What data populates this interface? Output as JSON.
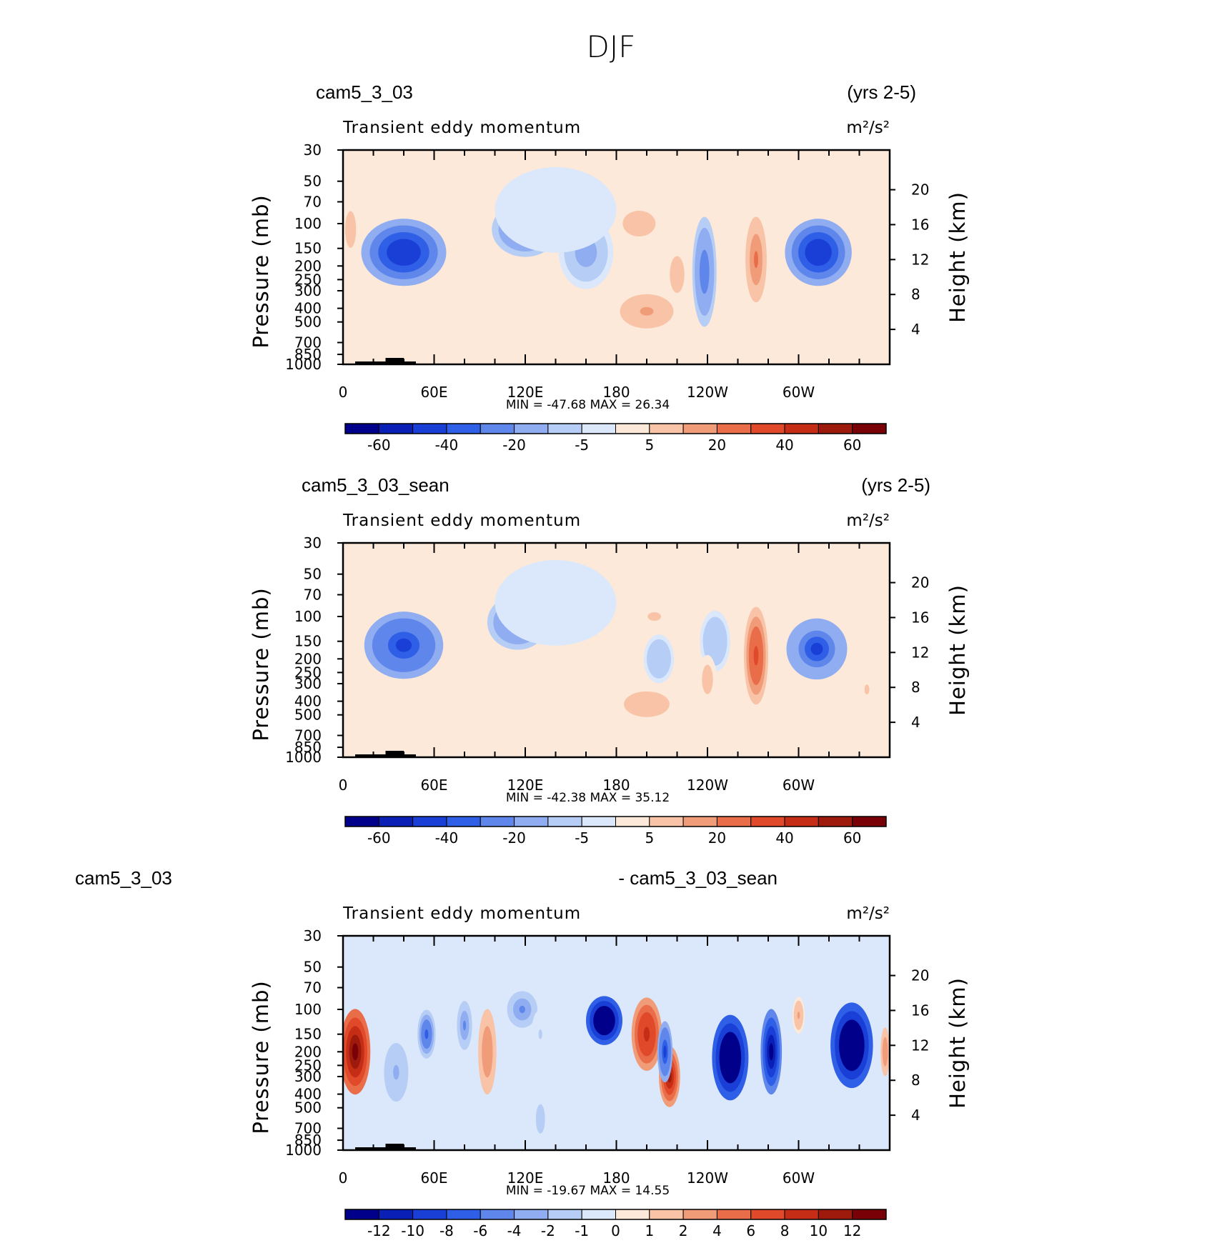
{
  "title": "DJF",
  "panels": [
    {
      "left_title": "cam5_3_03",
      "right_title": "(yrs 2-5)",
      "field_label": "Transient eddy momentum",
      "units": "m²/s²",
      "min_max": "MIN = -47.68   MAX =   26.34",
      "cb_labels": [
        "-60",
        "-40",
        "-20",
        "-5",
        "5",
        "20",
        "40",
        "60"
      ],
      "cb_colors": [
        "#00008b",
        "#0a1fb5",
        "#1a3fd6",
        "#2f5fe6",
        "#5f86ea",
        "#8fadf0",
        "#b6cdf5",
        "#dbe8fb",
        "#fde9d9",
        "#f8c3a6",
        "#f19c79",
        "#ea6d49",
        "#e04a2a",
        "#c52d17",
        "#9d1a0c",
        "#7a0008"
      ],
      "blobs": [
        {
          "lon": 40,
          "p": 160,
          "lw": 28,
          "pw": 0.55,
          "v": -45
        },
        {
          "lon": 120,
          "p": 110,
          "lw": 22,
          "pw": 0.45,
          "v": -30
        },
        {
          "lon": 160,
          "p": 160,
          "lw": 18,
          "pw": 0.6,
          "v": -18
        },
        {
          "lon": 195,
          "p": 100,
          "lw": 18,
          "pw": 0.35,
          "v": 12
        },
        {
          "lon": 200,
          "p": 420,
          "lw": 22,
          "pw": 0.35,
          "v": 15
        },
        {
          "lon": 220,
          "p": 230,
          "lw": 8,
          "pw": 0.5,
          "v": 12
        },
        {
          "lon": 238,
          "p": 220,
          "lw": 8,
          "pw": 0.9,
          "v": -30
        },
        {
          "lon": 272,
          "p": 180,
          "lw": 7,
          "pw": 0.7,
          "v": 26
        },
        {
          "lon": 313,
          "p": 160,
          "lw": 22,
          "pw": 0.55,
          "v": -45
        },
        {
          "lon": 5,
          "p": 110,
          "lw": 6,
          "pw": 0.5,
          "v": 12
        },
        {
          "lon": 100,
          "p": 600,
          "lw": 5,
          "pw": 0.25,
          "v": 6
        },
        {
          "lon": 140,
          "p": 80,
          "lw": 40,
          "pw": 0.7,
          "v": -4
        }
      ]
    },
    {
      "left_title": "cam5_3_03_sean",
      "right_title": "(yrs 2-5)",
      "field_label": "Transient eddy momentum",
      "units": "m²/s²",
      "min_max": "MIN = -42.38   MAX =   35.12",
      "cb_labels": [
        "-60",
        "-40",
        "-20",
        "-5",
        "5",
        "20",
        "40",
        "60"
      ],
      "cb_colors": [
        "#00008b",
        "#0a1fb5",
        "#1a3fd6",
        "#2f5fe6",
        "#5f86ea",
        "#8fadf0",
        "#b6cdf5",
        "#dbe8fb",
        "#fde9d9",
        "#f8c3a6",
        "#f19c79",
        "#ea6d49",
        "#e04a2a",
        "#c52d17",
        "#9d1a0c",
        "#7a0008"
      ],
      "blobs": [
        {
          "lon": 40,
          "p": 160,
          "lw": 26,
          "pw": 0.55,
          "v": -42
        },
        {
          "lon": 115,
          "p": 110,
          "lw": 20,
          "pw": 0.45,
          "v": -30
        },
        {
          "lon": 205,
          "p": 100,
          "lw": 22,
          "pw": 0.35,
          "v": 8
        },
        {
          "lon": 200,
          "p": 420,
          "lw": 25,
          "pw": 0.35,
          "v": 12
        },
        {
          "lon": 208,
          "p": 200,
          "lw": 10,
          "pw": 0.4,
          "v": -14
        },
        {
          "lon": 245,
          "p": 150,
          "lw": 10,
          "pw": 0.5,
          "v": -14
        },
        {
          "lon": 240,
          "p": 280,
          "lw": 6,
          "pw": 0.4,
          "v": 12
        },
        {
          "lon": 272,
          "p": 190,
          "lw": 8,
          "pw": 0.8,
          "v": 35
        },
        {
          "lon": 312,
          "p": 170,
          "lw": 20,
          "pw": 0.5,
          "v": -40
        },
        {
          "lon": 345,
          "p": 330,
          "lw": 8,
          "pw": 0.4,
          "v": 8
        },
        {
          "lon": 140,
          "p": 80,
          "lw": 40,
          "pw": 0.7,
          "v": -4
        }
      ]
    },
    {
      "left_title": "cam5_3_03",
      "right_title": "- cam5_3_03_sean",
      "field_label": "Transient eddy momentum",
      "units": "m²/s²",
      "min_max": "MIN = -19.67   MAX =   14.55",
      "cb_labels": [
        "-12",
        "-10",
        "-8",
        "-6",
        "-4",
        "-2",
        "-1",
        "0",
        "1",
        "2",
        "4",
        "6",
        "8",
        "10",
        "12"
      ],
      "cb_colors": [
        "#00008b",
        "#0a1fb5",
        "#1a3fd6",
        "#2f5fe6",
        "#5f86ea",
        "#8fadf0",
        "#b6cdf5",
        "#dbe8fb",
        "#fde9d9",
        "#f8c3a6",
        "#f19c79",
        "#ea6d49",
        "#e04a2a",
        "#c52d17",
        "#9d1a0c",
        "#7a0008"
      ],
      "blobs": [
        {
          "lon": 8,
          "p": 200,
          "lw": 10,
          "pw": 0.7,
          "v": 14
        },
        {
          "lon": 55,
          "p": 150,
          "lw": 6,
          "pw": 0.4,
          "v": -8
        },
        {
          "lon": 35,
          "p": 280,
          "lw": 10,
          "pw": 0.6,
          "v": -4
        },
        {
          "lon": 80,
          "p": 130,
          "lw": 5,
          "pw": 0.4,
          "v": -6
        },
        {
          "lon": 95,
          "p": 200,
          "lw": 6,
          "pw": 0.7,
          "v": 5
        },
        {
          "lon": 118,
          "p": 100,
          "lw": 10,
          "pw": 0.3,
          "v": -6
        },
        {
          "lon": 172,
          "p": 120,
          "lw": 12,
          "pw": 0.4,
          "v": -19
        },
        {
          "lon": 200,
          "p": 150,
          "lw": 10,
          "pw": 0.6,
          "v": 10
        },
        {
          "lon": 215,
          "p": 300,
          "lw": 7,
          "pw": 0.5,
          "v": 12
        },
        {
          "lon": 212,
          "p": 200,
          "lw": 5,
          "pw": 0.5,
          "v": -10
        },
        {
          "lon": 255,
          "p": 220,
          "lw": 12,
          "pw": 0.7,
          "v": -18
        },
        {
          "lon": 282,
          "p": 200,
          "lw": 7,
          "pw": 0.7,
          "v": -14
        },
        {
          "lon": 300,
          "p": 110,
          "lw": 4,
          "pw": 0.3,
          "v": 4
        },
        {
          "lon": 335,
          "p": 180,
          "lw": 14,
          "pw": 0.7,
          "v": -19
        },
        {
          "lon": 130,
          "p": 150,
          "lw": 6,
          "pw": 0.4,
          "v": -2
        },
        {
          "lon": 130,
          "p": 600,
          "lw": 5,
          "pw": 0.4,
          "v": -3
        },
        {
          "lon": 357,
          "p": 200,
          "lw": 3,
          "pw": 0.4,
          "v": 5
        }
      ]
    }
  ],
  "axes": {
    "y_left_label": "Pressure (mb)",
    "y_right_label": "Height (km)",
    "pressure_ticks": [
      "30",
      "50",
      "70",
      "100",
      "150",
      "200",
      "250",
      "300",
      "400",
      "500",
      "700",
      "850",
      "1000"
    ],
    "height_ticks": [
      "20",
      "16",
      "12",
      "8",
      "4"
    ],
    "x_ticks": [
      "0",
      "60E",
      "120E",
      "180",
      "120W",
      "60W"
    ]
  }
}
